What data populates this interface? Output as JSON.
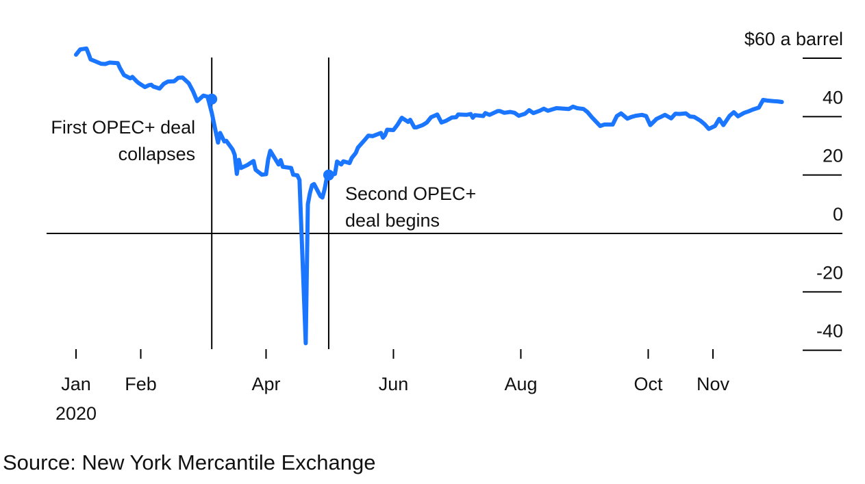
{
  "chart_data": {
    "type": "line",
    "unit_label": "$60 a barrel",
    "y_ticks": [
      {
        "value": 60,
        "label": "$60 a barrel"
      },
      {
        "value": 40,
        "label": "40"
      },
      {
        "value": 20,
        "label": "20"
      },
      {
        "value": 0,
        "label": "0"
      },
      {
        "value": -20,
        "label": "-20"
      },
      {
        "value": -40,
        "label": "-40"
      }
    ],
    "ylim": [
      -40,
      60
    ],
    "x_ticks": [
      {
        "date": "2020-01-01",
        "label": "Jan",
        "sublabel": "2020"
      },
      {
        "date": "2020-02-01",
        "label": "Feb"
      },
      {
        "date": "2020-04-01",
        "label": "Apr"
      },
      {
        "date": "2020-06-01",
        "label": "Jun"
      },
      {
        "date": "2020-08-01",
        "label": "Aug"
      },
      {
        "date": "2020-10-01",
        "label": "Oct"
      },
      {
        "date": "2020-11-01",
        "label": "Nov"
      }
    ],
    "annotations": [
      {
        "date": "2020-03-06",
        "value": 46,
        "lines": [
          "First OPEC+ deal",
          "collapses"
        ],
        "side": "left"
      },
      {
        "date": "2020-05-01",
        "value": 20,
        "lines": [
          "Second OPEC+",
          "deal begins"
        ],
        "side": "right"
      }
    ],
    "series": [
      {
        "color": "#1a75ff",
        "points": [
          [
            "2020-01-01",
            61.2
          ],
          [
            "2020-01-03",
            63.0
          ],
          [
            "2020-01-06",
            63.3
          ],
          [
            "2020-01-07",
            61.5
          ],
          [
            "2020-01-08",
            59.6
          ],
          [
            "2020-01-10",
            59.0
          ],
          [
            "2020-01-13",
            58.1
          ],
          [
            "2020-01-15",
            58.0
          ],
          [
            "2020-01-17",
            58.5
          ],
          [
            "2020-01-21",
            58.3
          ],
          [
            "2020-01-22",
            56.7
          ],
          [
            "2020-01-24",
            54.2
          ],
          [
            "2020-01-27",
            53.1
          ],
          [
            "2020-01-28",
            53.6
          ],
          [
            "2020-01-30",
            52.1
          ],
          [
            "2020-01-31",
            51.5
          ],
          [
            "2020-02-03",
            50.1
          ],
          [
            "2020-02-05",
            50.8
          ],
          [
            "2020-02-06",
            50.9
          ],
          [
            "2020-02-07",
            50.3
          ],
          [
            "2020-02-10",
            49.6
          ],
          [
            "2020-02-12",
            51.2
          ],
          [
            "2020-02-14",
            52.0
          ],
          [
            "2020-02-17",
            52.1
          ],
          [
            "2020-02-19",
            53.3
          ],
          [
            "2020-02-21",
            53.4
          ],
          [
            "2020-02-24",
            51.4
          ],
          [
            "2020-02-26",
            48.7
          ],
          [
            "2020-02-28",
            45.3
          ],
          [
            "2020-03-02",
            47.2
          ],
          [
            "2020-03-04",
            46.8
          ],
          [
            "2020-03-06",
            41.3
          ],
          [
            "2020-03-09",
            31.1
          ],
          [
            "2020-03-10",
            34.4
          ],
          [
            "2020-03-12",
            31.5
          ],
          [
            "2020-03-13",
            31.7
          ],
          [
            "2020-03-16",
            28.7
          ],
          [
            "2020-03-17",
            26.9
          ],
          [
            "2020-03-18",
            20.4
          ],
          [
            "2020-03-19",
            25.2
          ],
          [
            "2020-03-20",
            22.4
          ],
          [
            "2020-03-23",
            23.4
          ],
          [
            "2020-03-26",
            24.8
          ],
          [
            "2020-03-27",
            21.8
          ],
          [
            "2020-03-30",
            20.1
          ],
          [
            "2020-04-01",
            20.3
          ],
          [
            "2020-04-02",
            25.3
          ],
          [
            "2020-04-03",
            28.3
          ],
          [
            "2020-04-07",
            23.6
          ],
          [
            "2020-04-08",
            25.1
          ],
          [
            "2020-04-09",
            22.8
          ],
          [
            "2020-04-13",
            22.4
          ],
          [
            "2020-04-14",
            20.1
          ],
          [
            "2020-04-16",
            19.9
          ],
          [
            "2020-04-17",
            18.3
          ],
          [
            "2020-04-20",
            -37.6
          ],
          [
            "2020-04-21",
            10.0
          ],
          [
            "2020-04-22",
            13.8
          ],
          [
            "2020-04-23",
            16.5
          ],
          [
            "2020-04-24",
            16.9
          ],
          [
            "2020-04-27",
            12.8
          ],
          [
            "2020-04-28",
            12.3
          ],
          [
            "2020-04-29",
            15.1
          ],
          [
            "2020-04-30",
            18.8
          ],
          [
            "2020-05-01",
            19.8
          ],
          [
            "2020-05-04",
            20.4
          ],
          [
            "2020-05-05",
            24.6
          ],
          [
            "2020-05-07",
            23.6
          ],
          [
            "2020-05-08",
            24.7
          ],
          [
            "2020-05-11",
            24.1
          ],
          [
            "2020-05-12",
            25.8
          ],
          [
            "2020-05-14",
            27.6
          ],
          [
            "2020-05-15",
            29.4
          ],
          [
            "2020-05-18",
            31.8
          ],
          [
            "2020-05-20",
            33.5
          ],
          [
            "2020-05-22",
            33.3
          ],
          [
            "2020-05-26",
            34.4
          ],
          [
            "2020-05-27",
            32.8
          ],
          [
            "2020-05-28",
            33.7
          ],
          [
            "2020-05-29",
            35.5
          ],
          [
            "2020-06-01",
            35.4
          ],
          [
            "2020-06-03",
            37.3
          ],
          [
            "2020-06-05",
            39.6
          ],
          [
            "2020-06-08",
            38.2
          ],
          [
            "2020-06-09",
            38.9
          ],
          [
            "2020-06-11",
            36.3
          ],
          [
            "2020-06-12",
            36.3
          ],
          [
            "2020-06-15",
            37.1
          ],
          [
            "2020-06-17",
            38.0
          ],
          [
            "2020-06-19",
            39.8
          ],
          [
            "2020-06-22",
            40.7
          ],
          [
            "2020-06-24",
            38.0
          ],
          [
            "2020-06-26",
            38.5
          ],
          [
            "2020-06-29",
            39.7
          ],
          [
            "2020-07-01",
            39.8
          ],
          [
            "2020-07-02",
            40.7
          ],
          [
            "2020-07-06",
            40.6
          ],
          [
            "2020-07-08",
            40.9
          ],
          [
            "2020-07-09",
            39.6
          ],
          [
            "2020-07-10",
            40.5
          ],
          [
            "2020-07-14",
            40.2
          ],
          [
            "2020-07-15",
            41.2
          ],
          [
            "2020-07-17",
            40.6
          ],
          [
            "2020-07-21",
            41.9
          ],
          [
            "2020-07-22",
            41.9
          ],
          [
            "2020-07-24",
            41.3
          ],
          [
            "2020-07-27",
            41.6
          ],
          [
            "2020-07-29",
            41.3
          ],
          [
            "2020-07-31",
            40.3
          ],
          [
            "2020-08-03",
            41.0
          ],
          [
            "2020-08-05",
            42.2
          ],
          [
            "2020-08-07",
            41.2
          ],
          [
            "2020-08-10",
            42.0
          ],
          [
            "2020-08-12",
            42.7
          ],
          [
            "2020-08-14",
            42.0
          ],
          [
            "2020-08-18",
            42.9
          ],
          [
            "2020-08-20",
            42.8
          ],
          [
            "2020-08-24",
            42.6
          ],
          [
            "2020-08-26",
            43.4
          ],
          [
            "2020-08-28",
            42.9
          ],
          [
            "2020-08-31",
            42.6
          ],
          [
            "2020-09-02",
            41.5
          ],
          [
            "2020-09-04",
            39.8
          ],
          [
            "2020-09-08",
            36.8
          ],
          [
            "2020-09-10",
            37.3
          ],
          [
            "2020-09-14",
            37.3
          ],
          [
            "2020-09-16",
            40.2
          ],
          [
            "2020-09-18",
            41.1
          ],
          [
            "2020-09-21",
            39.3
          ],
          [
            "2020-09-23",
            39.9
          ],
          [
            "2020-09-25",
            40.3
          ],
          [
            "2020-09-28",
            40.6
          ],
          [
            "2020-09-30",
            40.2
          ],
          [
            "2020-10-02",
            37.1
          ],
          [
            "2020-10-05",
            39.2
          ],
          [
            "2020-10-07",
            39.9
          ],
          [
            "2020-10-09",
            40.6
          ],
          [
            "2020-10-12",
            39.4
          ],
          [
            "2020-10-14",
            41.0
          ],
          [
            "2020-10-16",
            40.9
          ],
          [
            "2020-10-19",
            41.1
          ],
          [
            "2020-10-21",
            40.0
          ],
          [
            "2020-10-23",
            39.9
          ],
          [
            "2020-10-26",
            38.6
          ],
          [
            "2020-10-28",
            37.4
          ],
          [
            "2020-10-30",
            35.8
          ],
          [
            "2020-11-02",
            36.8
          ],
          [
            "2020-11-04",
            39.2
          ],
          [
            "2020-11-06",
            37.1
          ],
          [
            "2020-11-09",
            40.3
          ],
          [
            "2020-11-11",
            41.5
          ],
          [
            "2020-11-13",
            40.1
          ],
          [
            "2020-11-16",
            41.3
          ],
          [
            "2020-11-18",
            41.8
          ],
          [
            "2020-11-20",
            42.4
          ],
          [
            "2020-11-23",
            43.1
          ],
          [
            "2020-11-25",
            45.7
          ],
          [
            "2020-11-27",
            45.5
          ],
          [
            "2020-11-30",
            45.3
          ],
          [
            "2020-12-02",
            45.2
          ],
          [
            "2020-12-04",
            45.0
          ]
        ]
      }
    ]
  },
  "source_text": "Source: New York Mercantile Exchange"
}
